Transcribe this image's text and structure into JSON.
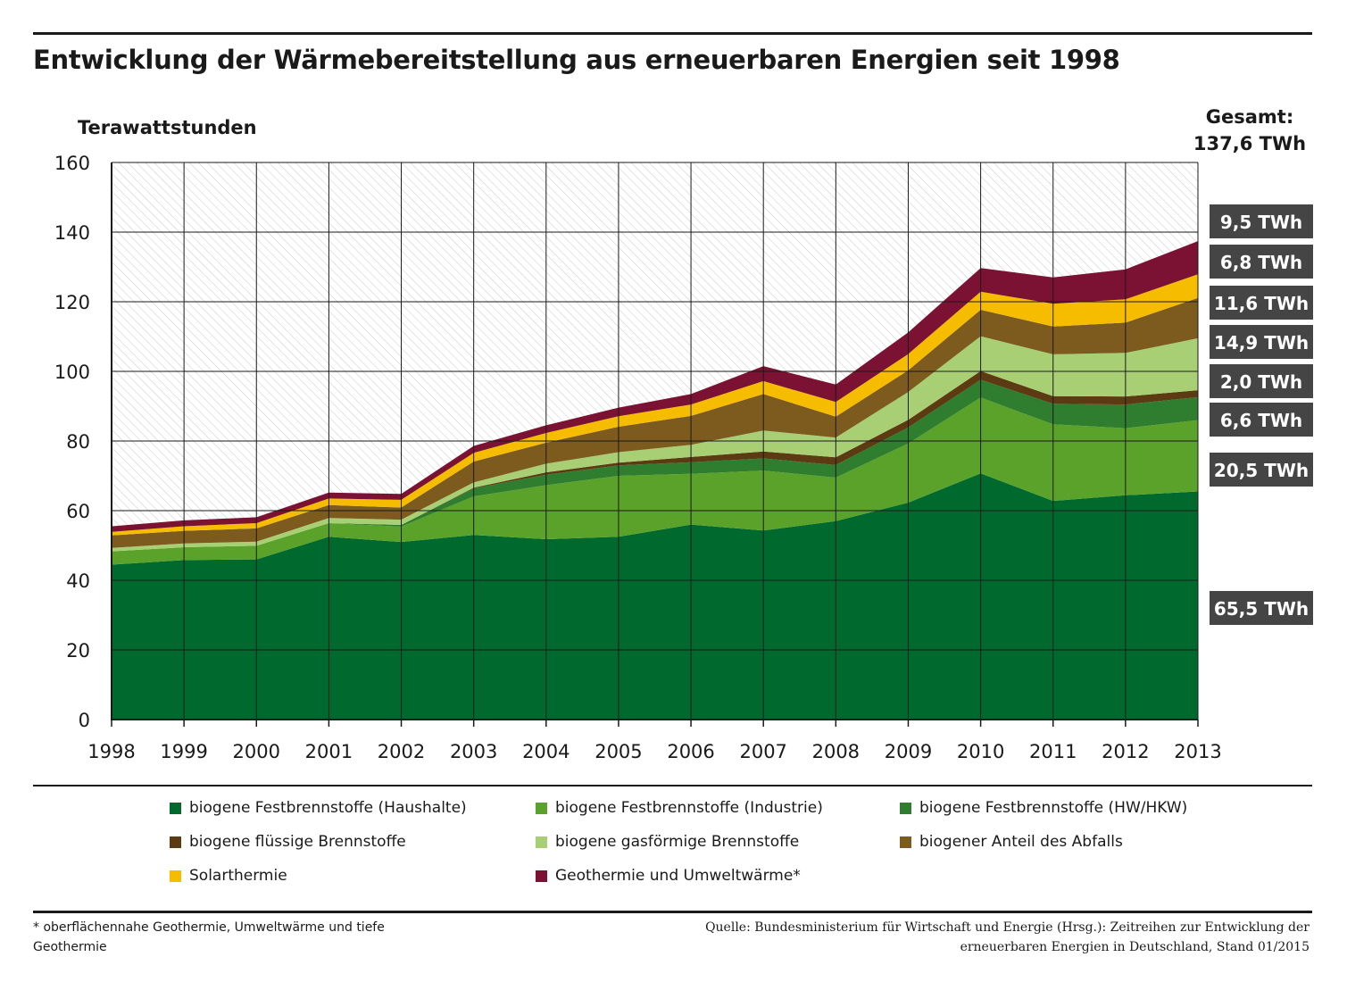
{
  "title": "Entwicklung der Wärmebereitstellung aus erneuerbaren Energien seit 1998",
  "total": {
    "label": "Gesamt:",
    "value": "137,6 TWh"
  },
  "footnote": "* oberflächennahe Geothermie, Umweltwärme  und tiefe Geothermie",
  "source": "Quelle: Bundesministerium für Wirtschaft und Energie (Hrsg.): Zeitreihen zur Entwicklung der erneuerbaren Energien in Deutschland, Stand 01/2015",
  "chart_data": {
    "type": "area",
    "stacked": true,
    "ylabel": "Terawattstunden",
    "ylim": [
      0,
      160
    ],
    "yticks": [
      0,
      20,
      40,
      60,
      80,
      100,
      120,
      140,
      160
    ],
    "grid": true,
    "legend_position": "bottom",
    "categories": [
      "1998",
      "1999",
      "2000",
      "2001",
      "2002",
      "2003",
      "2004",
      "2005",
      "2006",
      "2007",
      "2008",
      "2009",
      "2010",
      "2011",
      "2012",
      "2013"
    ],
    "series": [
      {
        "name": "biogene Festbrennstoffe (Haushalte)",
        "color": "#006a2e",
        "end_label": "65,5 TWh",
        "values": [
          44.5,
          45.8,
          46.0,
          52.5,
          51.0,
          53.0,
          51.8,
          52.5,
          56.0,
          54.3,
          57.0,
          62.3,
          70.7,
          62.8,
          64.4,
          65.5
        ]
      },
      {
        "name": "biogene Festbrennstoffe (Industrie)",
        "color": "#5aa22a",
        "end_label": "20,5 TWh",
        "values": [
          3.8,
          3.7,
          3.9,
          3.9,
          4.4,
          11.1,
          15.5,
          17.5,
          14.6,
          17.2,
          12.5,
          17.0,
          21.8,
          22.0,
          19.3,
          20.5
        ]
      },
      {
        "name": "biogene Festbrennstoffe (HW/HKW)",
        "color": "#2f7d2f",
        "end_label": "6,6 TWh",
        "values": [
          0.0,
          0.0,
          0.0,
          0.0,
          0.5,
          2.3,
          3.0,
          3.0,
          3.3,
          3.5,
          3.6,
          4.6,
          5.1,
          5.9,
          6.8,
          6.6
        ]
      },
      {
        "name": "biogene flüssige Brennstoffe",
        "color": "#5c3a12",
        "end_label": "2,0 TWh",
        "values": [
          0.0,
          0.0,
          0.0,
          0.0,
          0.0,
          0.2,
          0.7,
          0.8,
          1.5,
          2.0,
          2.2,
          2.2,
          2.5,
          2.2,
          2.3,
          2.0
        ]
      },
      {
        "name": "biogene gasförmige Brennstoffe",
        "color": "#a9cf75",
        "end_label": "14,9 TWh",
        "values": [
          1.0,
          1.1,
          1.2,
          1.5,
          1.5,
          1.5,
          2.5,
          3.0,
          3.5,
          6.0,
          5.7,
          8.0,
          10.0,
          12.0,
          12.5,
          14.9
        ]
      },
      {
        "name": "biogener Anteil des Abfalls",
        "color": "#7d5a1e",
        "end_label": "11,6 TWh",
        "values": [
          3.6,
          3.6,
          3.8,
          3.7,
          3.5,
          6.0,
          6.0,
          7.3,
          8.3,
          10.5,
          6.0,
          6.2,
          7.6,
          8.0,
          8.7,
          11.6
        ]
      },
      {
        "name": "Solarthermie",
        "color": "#f6bc00",
        "end_label": "6,8 TWh",
        "values": [
          1.0,
          1.3,
          1.5,
          1.9,
          2.2,
          2.5,
          2.8,
          3.0,
          3.3,
          3.7,
          4.2,
          4.7,
          5.2,
          6.5,
          6.7,
          6.8
        ]
      },
      {
        "name": "Geothermie und Umweltwärme*",
        "color": "#7b1233",
        "end_label": "9,5 TWh",
        "values": [
          1.6,
          1.7,
          1.7,
          1.7,
          1.7,
          2.0,
          2.2,
          2.5,
          3.0,
          4.3,
          5.0,
          6.2,
          6.8,
          7.6,
          8.6,
          9.5
        ]
      }
    ]
  }
}
